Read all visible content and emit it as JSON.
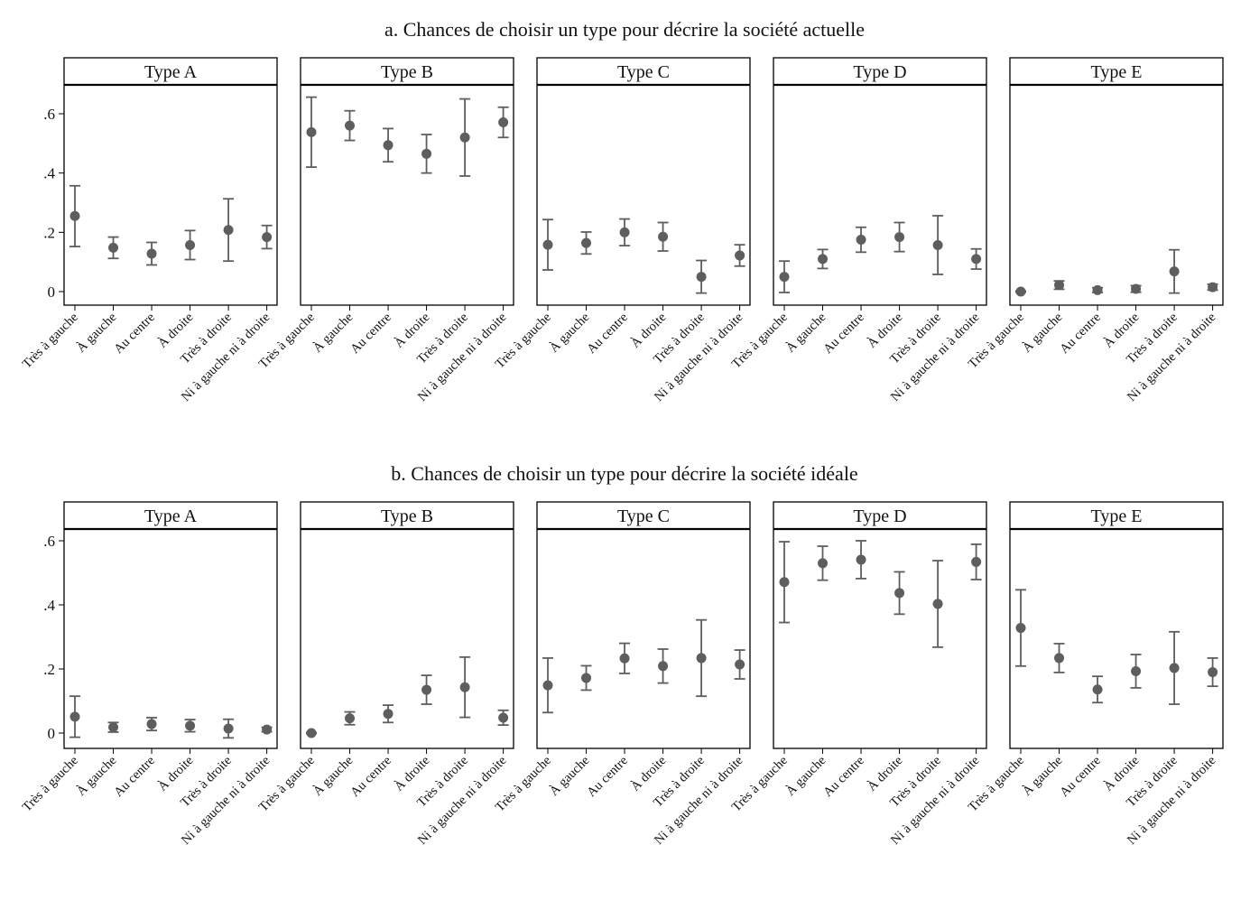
{
  "chart_data": [
    {
      "type": "scatter",
      "subtype": "point-errorbar",
      "title": "a. Chances de choisir un type pour décrire la société actuelle",
      "categories": [
        "Très à gauche",
        "À gauche",
        "Au centre",
        "À droite",
        "Très à droite",
        "Ni à gauche ni à droite"
      ],
      "ylim": [
        0,
        0.7
      ],
      "yticks": [
        0,
        0.2,
        0.4,
        0.6
      ],
      "ytick_labels": [
        "0",
        ".2",
        ".4",
        ".6"
      ],
      "grid": false,
      "panels": [
        {
          "name": "Type A",
          "values": [
            0.255,
            0.148,
            0.128,
            0.157,
            0.208,
            0.184
          ],
          "lower": [
            0.152,
            0.112,
            0.09,
            0.108,
            0.103,
            0.145
          ],
          "upper": [
            0.357,
            0.184,
            0.166,
            0.206,
            0.313,
            0.223
          ]
        },
        {
          "name": "Type B",
          "values": [
            0.538,
            0.56,
            0.494,
            0.465,
            0.52,
            0.571
          ],
          "lower": [
            0.42,
            0.51,
            0.438,
            0.4,
            0.39,
            0.52
          ],
          "upper": [
            0.656,
            0.61,
            0.55,
            0.53,
            0.65,
            0.622
          ]
        },
        {
          "name": "Type C",
          "values": [
            0.158,
            0.164,
            0.2,
            0.185,
            0.05,
            0.122
          ],
          "lower": [
            0.073,
            0.127,
            0.155,
            0.137,
            -0.005,
            0.086
          ],
          "upper": [
            0.243,
            0.201,
            0.245,
            0.233,
            0.105,
            0.158
          ]
        },
        {
          "name": "Type D",
          "values": [
            0.05,
            0.11,
            0.175,
            0.184,
            0.157,
            0.11
          ],
          "lower": [
            -0.003,
            0.078,
            0.133,
            0.135,
            0.058,
            0.076
          ],
          "upper": [
            0.103,
            0.142,
            0.217,
            0.233,
            0.256,
            0.144
          ]
        },
        {
          "name": "Type E",
          "values": [
            0.0,
            0.022,
            0.005,
            0.009,
            0.068,
            0.015
          ],
          "lower": [
            -0.002,
            0.008,
            -0.003,
            -0.002,
            -0.005,
            0.005
          ],
          "upper": [
            0.002,
            0.036,
            0.013,
            0.02,
            0.141,
            0.025
          ]
        }
      ]
    },
    {
      "type": "scatter",
      "subtype": "point-errorbar",
      "title": "b. Chances de choisir un type pour décrire la société idéale",
      "categories": [
        "Très à gauche",
        "À gauche",
        "Au centre",
        "À droite",
        "Très à droite",
        "Ni à gauche ni à droite"
      ],
      "ylim": [
        0,
        0.7
      ],
      "yticks": [
        0,
        0.2,
        0.4,
        0.6
      ],
      "ytick_labels": [
        "0",
        ".2",
        ".4",
        ".6"
      ],
      "grid": false,
      "panels": [
        {
          "name": "Type A",
          "values": [
            0.051,
            0.018,
            0.028,
            0.023,
            0.014,
            0.011
          ],
          "lower": [
            -0.013,
            0.003,
            0.008,
            0.004,
            -0.015,
            0.004
          ],
          "upper": [
            0.115,
            0.033,
            0.048,
            0.042,
            0.043,
            0.018
          ]
        },
        {
          "name": "Type B",
          "values": [
            0.0,
            0.046,
            0.06,
            0.135,
            0.143,
            0.048
          ],
          "lower": [
            -0.002,
            0.026,
            0.033,
            0.09,
            0.049,
            0.025
          ],
          "upper": [
            0.002,
            0.066,
            0.087,
            0.18,
            0.237,
            0.071
          ]
        },
        {
          "name": "Type C",
          "values": [
            0.149,
            0.172,
            0.233,
            0.209,
            0.234,
            0.214
          ],
          "lower": [
            0.064,
            0.134,
            0.186,
            0.156,
            0.115,
            0.169
          ],
          "upper": [
            0.234,
            0.21,
            0.28,
            0.262,
            0.353,
            0.259
          ]
        },
        {
          "name": "Type D",
          "values": [
            0.471,
            0.53,
            0.541,
            0.437,
            0.403,
            0.534
          ],
          "lower": [
            0.345,
            0.477,
            0.482,
            0.371,
            0.268,
            0.479
          ],
          "upper": [
            0.597,
            0.583,
            0.6,
            0.503,
            0.538,
            0.589
          ]
        },
        {
          "name": "Type E",
          "values": [
            0.328,
            0.234,
            0.136,
            0.193,
            0.203,
            0.19
          ],
          "lower": [
            0.209,
            0.189,
            0.095,
            0.141,
            0.09,
            0.146
          ],
          "upper": [
            0.447,
            0.279,
            0.177,
            0.245,
            0.316,
            0.234
          ]
        }
      ]
    }
  ],
  "colors": {
    "marker": "#5e5e5e",
    "frame": "#000000",
    "text": "#111111"
  }
}
